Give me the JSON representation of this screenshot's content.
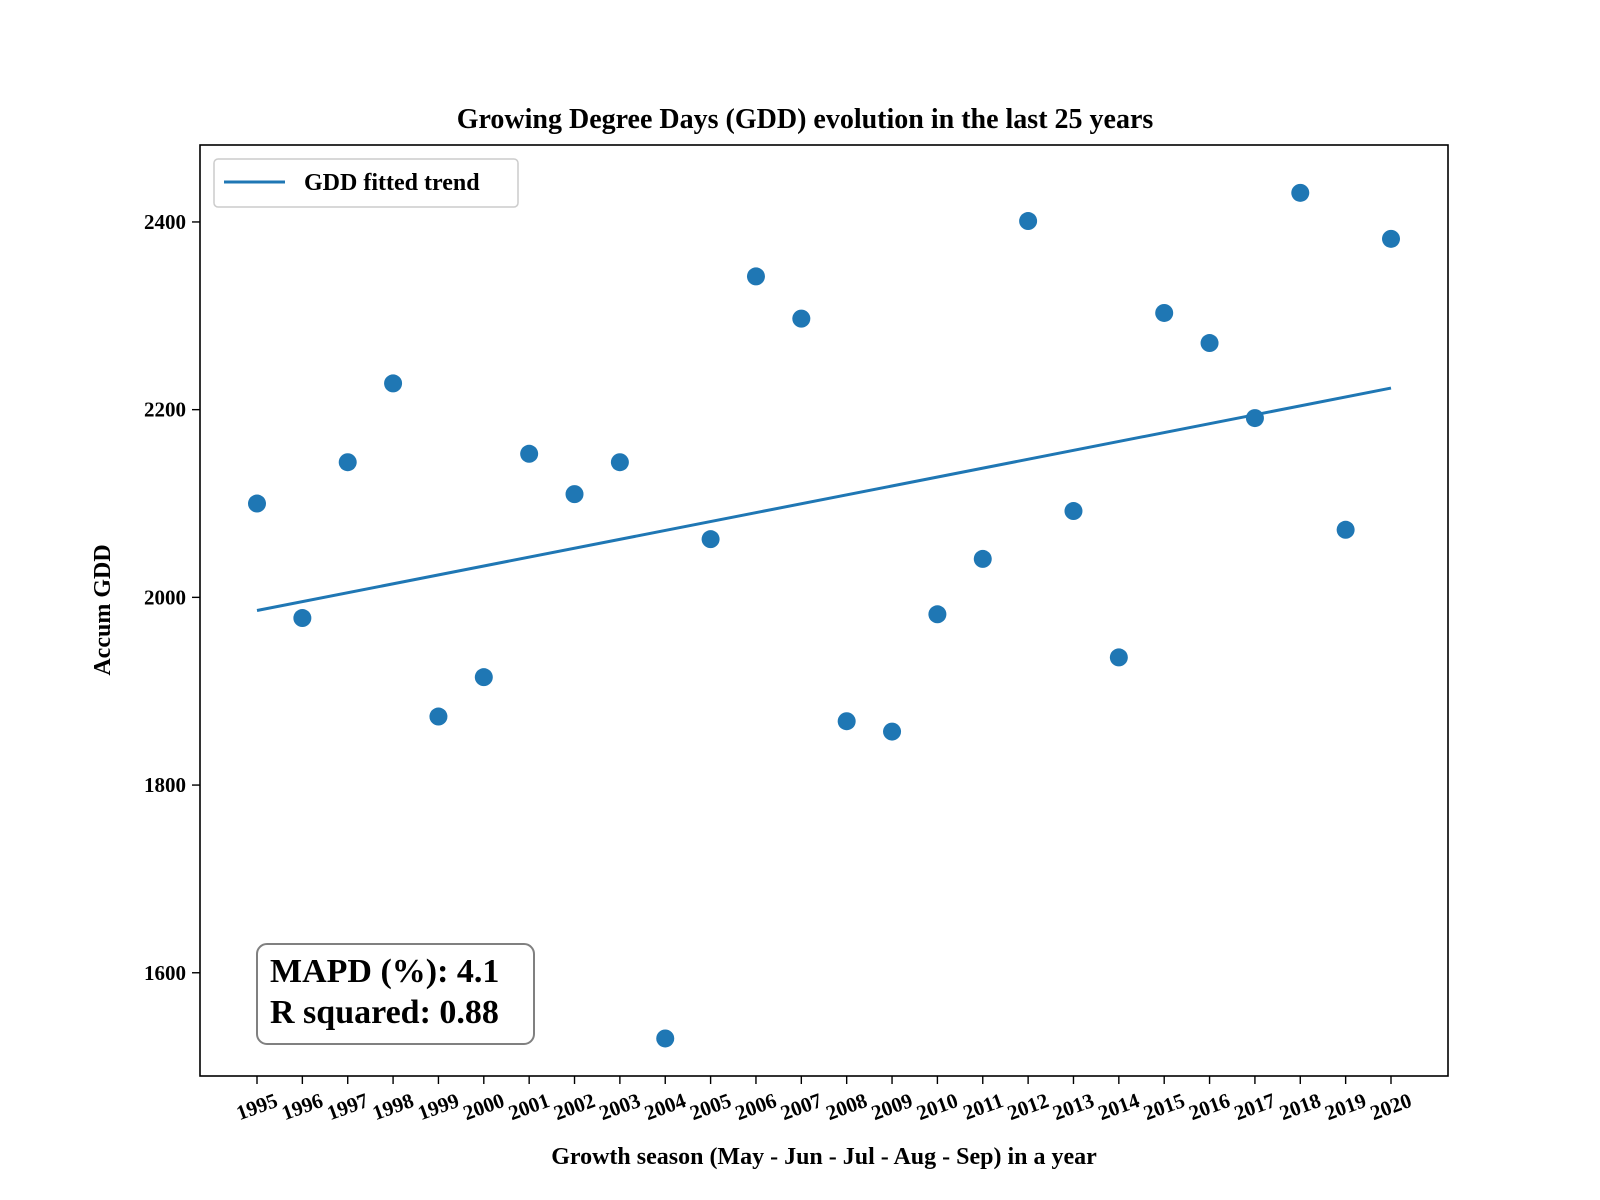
{
  "chart_data": {
    "type": "scatter",
    "title": "Growing Degree Days (GDD) evolution in the last 25 years",
    "xlabel": "Growth season (May - Jun - Jul - Aug - Sep) in a year",
    "ylabel": "Accum GDD",
    "ylim": [
      1490,
      2482
    ],
    "yticks": [
      1600,
      1800,
      2000,
      2200,
      2400
    ],
    "categories": [
      "1995",
      "1996",
      "1997",
      "1998",
      "1999",
      "2000",
      "2001",
      "2002",
      "2003",
      "2004",
      "2005",
      "2006",
      "2007",
      "2008",
      "2009",
      "2010",
      "2011",
      "2012",
      "2013",
      "2014",
      "2015",
      "2016",
      "2017",
      "2018",
      "2019",
      "2020"
    ],
    "series": [
      {
        "kind": "points",
        "color": "#1f77b4",
        "values": [
          2100,
          1978,
          2144,
          2228,
          1873,
          1915,
          2153,
          2110,
          2144,
          1530,
          2062,
          2342,
          2297,
          1868,
          1857,
          1982,
          2041,
          2401,
          2092,
          1936,
          2303,
          2271,
          2191,
          2431,
          2072,
          2382
        ]
      },
      {
        "name": "GDD fitted trend",
        "kind": "line",
        "color": "#1f77b4",
        "values": [
          1986,
          2223
        ],
        "x": [
          "1995",
          "2020"
        ]
      }
    ],
    "legend": {
      "position": "top-left",
      "label": "GDD fitted trend"
    },
    "annotation": {
      "position": "bottom-left",
      "lines": [
        "MAPD (%): 4.1",
        "R squared: 0.88"
      ]
    },
    "grid": false
  }
}
